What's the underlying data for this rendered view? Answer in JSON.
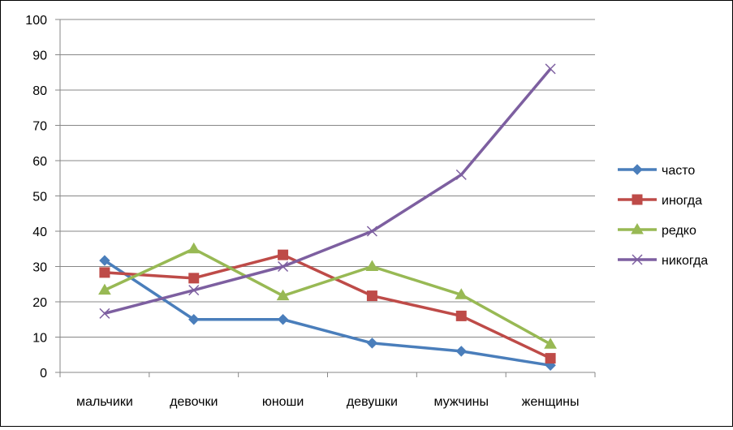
{
  "chart_data": {
    "type": "line",
    "categories": [
      "мальчики",
      "девочки",
      "юноши",
      "девушки",
      "мужчины",
      "женщины"
    ],
    "ylim": [
      0,
      100
    ],
    "yticks": [
      0,
      10,
      20,
      30,
      40,
      50,
      60,
      70,
      80,
      90,
      100
    ],
    "grid": true,
    "legend_position": "right",
    "series": [
      {
        "name": "часто",
        "color": "#4a7ebb",
        "marker": "diamond",
        "values": [
          31.7,
          15,
          15,
          8.3,
          6,
          2
        ]
      },
      {
        "name": "иногда",
        "color": "#be4b48",
        "marker": "square",
        "values": [
          28.3,
          26.7,
          33.3,
          21.7,
          16,
          4
        ]
      },
      {
        "name": "редко",
        "color": "#98b954",
        "marker": "triangle",
        "values": [
          23.3,
          35,
          21.7,
          30,
          22,
          8
        ]
      },
      {
        "name": "никогда",
        "color": "#7d5fa0",
        "marker": "cross",
        "values": [
          16.7,
          23.3,
          30,
          40,
          56,
          86
        ]
      }
    ]
  }
}
